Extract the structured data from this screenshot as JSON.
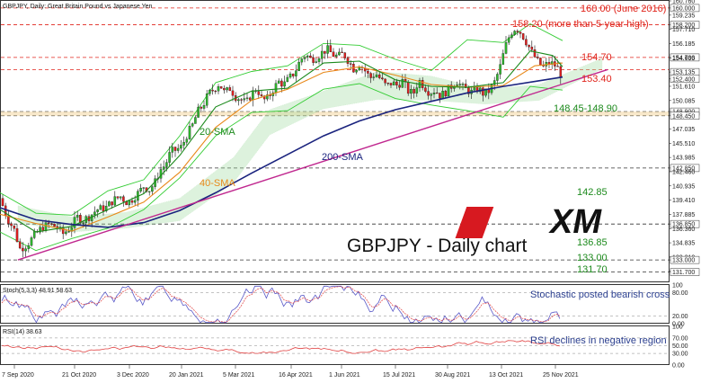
{
  "header": {
    "title": "GBPJPY, Daily:  Great Britain Pound vs Japanese Yen",
    "stoch_label": "Stoch(5,3,3) 48.91 58.63",
    "rsi_label": "RSI(14) 38.63"
  },
  "logo_text": "XM",
  "main_caption": "GBPJPY - Daily chart",
  "annotations": {
    "r160": "160.00 (June 2016)",
    "r158": "158.20 (more than 5-year high)",
    "r1547": "154.70",
    "r1534": "153.40",
    "r1484": "148.45-148.90",
    "r1428": "142.85",
    "r1368": "136.85",
    "r133": "133.00",
    "r1317": "131.70",
    "sma20": "20-SMA",
    "sma40": "40-SMA",
    "sma200": "200-SMA",
    "stoch_note": "Stochastic posted bearish cross",
    "rsi_note": "RSI declines in negative region"
  },
  "colors": {
    "red": "#e0241b",
    "green": "#1c8a1c",
    "navy": "#1a237e",
    "orange": "#e8891a",
    "magenta": "#c0288f",
    "lime": "#33cc33",
    "blue": "#3050d8",
    "stoch_main": "#5a5ac8",
    "stoch_signal": "#e04040",
    "rsi": "#e04040"
  },
  "chart_data": {
    "type": "candlestick",
    "symbol": "GBPJPY",
    "timeframe": "Daily",
    "price_ylim": [
      130.7,
      160.76
    ],
    "price_tick_labels": [
      "160.760",
      "160.000",
      "159.235",
      "158.200",
      "157.710",
      "156.185",
      "154.700",
      "154.655",
      "153.135",
      "152.400",
      "151.610",
      "150.085",
      "148.900",
      "148.450",
      "147.035",
      "145.510",
      "143.985",
      "142.850",
      "142.460",
      "140.935",
      "139.410",
      "137.885",
      "136.850",
      "136.360",
      "134.835",
      "133.310",
      "133.000",
      "131.785",
      "131.700"
    ],
    "x_dates": [
      "7 Sep 2020",
      "21 Oct 2020",
      "3 Dec 2020",
      "20 Jan 2021",
      "5 Mar 2021",
      "16 Apr 2021",
      "1 Jun 2021",
      "15 Jul 2021",
      "30 Aug 2021",
      "13 Oct 2021",
      "25 Nov 2021"
    ],
    "close_path": [
      [
        0,
        139.6
      ],
      [
        8,
        137.5
      ],
      [
        16,
        136.2
      ],
      [
        22,
        134.2
      ],
      [
        30,
        134.6
      ],
      [
        38,
        135.6
      ],
      [
        46,
        136.4
      ],
      [
        54,
        136.8
      ],
      [
        62,
        136.6
      ],
      [
        70,
        135.8
      ],
      [
        78,
        136.4
      ],
      [
        86,
        137.6
      ],
      [
        92,
        137.2
      ],
      [
        100,
        137.7
      ],
      [
        108,
        138.4
      ],
      [
        118,
        138.6
      ],
      [
        126,
        139.4
      ],
      [
        134,
        139.8
      ],
      [
        142,
        139.1
      ],
      [
        148,
        139.6
      ],
      [
        154,
        140.2
      ],
      [
        160,
        140.9
      ],
      [
        166,
        140.5
      ],
      [
        172,
        141.2
      ],
      [
        178,
        142.6
      ],
      [
        184,
        143.2
      ],
      [
        190,
        144.6
      ],
      [
        196,
        144.8
      ],
      [
        202,
        145.1
      ],
      [
        208,
        146.4
      ],
      [
        214,
        147.4
      ],
      [
        220,
        148.9
      ],
      [
        226,
        149.6
      ],
      [
        232,
        150.8
      ],
      [
        238,
        151.3
      ],
      [
        244,
        151.9
      ],
      [
        250,
        150.9
      ],
      [
        256,
        151.4
      ],
      [
        262,
        150.5
      ],
      [
        268,
        150.2
      ],
      [
        274,
        149.8
      ],
      [
        280,
        150.8
      ],
      [
        286,
        151.4
      ],
      [
        292,
        150.1
      ],
      [
        298,
        150.3
      ],
      [
        304,
        151.3
      ],
      [
        310,
        152.1
      ],
      [
        316,
        151.8
      ],
      [
        322,
        152.5
      ],
      [
        328,
        153.1
      ],
      [
        334,
        154.4
      ],
      [
        340,
        155.0
      ],
      [
        346,
        154.5
      ],
      [
        352,
        154.7
      ],
      [
        358,
        155.2
      ],
      [
        364,
        155.6
      ],
      [
        370,
        155.0
      ],
      [
        376,
        154.8
      ],
      [
        382,
        155.1
      ],
      [
        388,
        154.3
      ],
      [
        394,
        153.4
      ],
      [
        400,
        154.0
      ],
      [
        406,
        153.3
      ],
      [
        412,
        152.5
      ],
      [
        418,
        153.0
      ],
      [
        424,
        152.3
      ],
      [
        430,
        151.6
      ],
      [
        436,
        152.0
      ],
      [
        442,
        151.7
      ],
      [
        448,
        152.2
      ],
      [
        454,
        151.1
      ],
      [
        460,
        150.8
      ],
      [
        466,
        152.3
      ],
      [
        472,
        151.6
      ],
      [
        478,
        150.9
      ],
      [
        484,
        151.2
      ],
      [
        490,
        150.6
      ],
      [
        496,
        151.0
      ],
      [
        502,
        151.6
      ],
      [
        508,
        152.2
      ],
      [
        514,
        151.5
      ],
      [
        520,
        151.2
      ],
      [
        526,
        150.9
      ],
      [
        532,
        151.4
      ],
      [
        538,
        150.8
      ],
      [
        544,
        151.1
      ],
      [
        550,
        152.0
      ],
      [
        556,
        153.5
      ],
      [
        562,
        155.8
      ],
      [
        568,
        157.3
      ],
      [
        574,
        157.9
      ],
      [
        580,
        157.3
      ],
      [
        586,
        156.3
      ],
      [
        592,
        155.2
      ],
      [
        598,
        154.3
      ],
      [
        604,
        153.6
      ],
      [
        610,
        154.1
      ],
      [
        616,
        154.0
      ],
      [
        622,
        153.4
      ],
      [
        626,
        152.3
      ]
    ],
    "sma20_path": [
      [
        0,
        138.4
      ],
      [
        40,
        136.0
      ],
      [
        80,
        136.6
      ],
      [
        120,
        138.4
      ],
      [
        160,
        140.1
      ],
      [
        200,
        144.2
      ],
      [
        240,
        149.4
      ],
      [
        280,
        151.1
      ],
      [
        320,
        151.4
      ],
      [
        360,
        154.1
      ],
      [
        400,
        154.3
      ],
      [
        440,
        152.3
      ],
      [
        480,
        151.6
      ],
      [
        520,
        151.5
      ],
      [
        560,
        152.0
      ],
      [
        590,
        155.4
      ],
      [
        615,
        154.9
      ],
      [
        626,
        153.7
      ]
    ],
    "sma40_path": [
      [
        0,
        137.9
      ],
      [
        40,
        136.9
      ],
      [
        80,
        136.1
      ],
      [
        120,
        137.6
      ],
      [
        160,
        139.2
      ],
      [
        200,
        142.4
      ],
      [
        240,
        147.2
      ],
      [
        280,
        150.1
      ],
      [
        320,
        151.3
      ],
      [
        360,
        153.1
      ],
      [
        400,
        153.7
      ],
      [
        440,
        152.8
      ],
      [
        480,
        151.8
      ],
      [
        520,
        151.5
      ],
      [
        560,
        151.7
      ],
      [
        595,
        153.8
      ],
      [
        626,
        154.1
      ]
    ],
    "sma200_path": [
      [
        0,
        138.6
      ],
      [
        40,
        137.3
      ],
      [
        80,
        136.8
      ],
      [
        120,
        136.5
      ],
      [
        160,
        137.0
      ],
      [
        200,
        138.3
      ],
      [
        240,
        140.2
      ],
      [
        280,
        142.3
      ],
      [
        320,
        144.3
      ],
      [
        360,
        146.3
      ],
      [
        400,
        147.9
      ],
      [
        440,
        149.1
      ],
      [
        480,
        150.0
      ],
      [
        520,
        150.9
      ],
      [
        560,
        151.6
      ],
      [
        600,
        152.2
      ],
      [
        626,
        152.6
      ]
    ],
    "trendline": [
      [
        20,
        133.0
      ],
      [
        676,
        153.4
      ]
    ],
    "bollinger_upper": [
      [
        0,
        140.2
      ],
      [
        40,
        138.0
      ],
      [
        80,
        137.8
      ],
      [
        120,
        140.4
      ],
      [
        160,
        141.6
      ],
      [
        200,
        146.3
      ],
      [
        240,
        152.0
      ],
      [
        280,
        153.2
      ],
      [
        320,
        153.8
      ],
      [
        360,
        156.2
      ],
      [
        400,
        156.0
      ],
      [
        440,
        154.5
      ],
      [
        480,
        153.3
      ],
      [
        520,
        156.6
      ],
      [
        560,
        156.3
      ],
      [
        590,
        158.3
      ],
      [
        626,
        156.5
      ]
    ],
    "bollinger_lower": [
      [
        0,
        136.0
      ],
      [
        40,
        134.0
      ],
      [
        80,
        135.3
      ],
      [
        120,
        136.4
      ],
      [
        160,
        138.4
      ],
      [
        200,
        141.8
      ],
      [
        240,
        146.3
      ],
      [
        280,
        148.8
      ],
      [
        320,
        149.0
      ],
      [
        360,
        151.3
      ],
      [
        400,
        151.9
      ],
      [
        440,
        150.3
      ],
      [
        480,
        149.6
      ],
      [
        520,
        149.0
      ],
      [
        560,
        148.3
      ],
      [
        590,
        151.6
      ],
      [
        626,
        151.2
      ]
    ],
    "ichimoku_cloud_top": [
      [
        20,
        138.8
      ],
      [
        80,
        137.6
      ],
      [
        140,
        138.1
      ],
      [
        200,
        139.6
      ],
      [
        260,
        144.0
      ],
      [
        300,
        149.1
      ],
      [
        360,
        151.1
      ],
      [
        420,
        153.2
      ],
      [
        480,
        152.7
      ],
      [
        540,
        151.3
      ],
      [
        600,
        151.8
      ],
      [
        670,
        154.6
      ]
    ],
    "ichimoku_cloud_bottom": [
      [
        20,
        137.0
      ],
      [
        80,
        136.0
      ],
      [
        140,
        136.4
      ],
      [
        200,
        137.2
      ],
      [
        260,
        141.3
      ],
      [
        300,
        146.4
      ],
      [
        360,
        149.2
      ],
      [
        420,
        150.2
      ],
      [
        480,
        150.1
      ],
      [
        540,
        149.7
      ],
      [
        600,
        150.1
      ],
      [
        670,
        153.5
      ]
    ],
    "horizontal_levels": [
      160.0,
      158.2,
      154.7,
      153.4,
      148.9,
      148.45,
      142.85,
      136.85,
      133.0,
      131.7
    ],
    "stochastic": {
      "main": 48.91,
      "signal": 58.63,
      "ylim": [
        0,
        100
      ],
      "tick_labels": [
        "100",
        "80.00",
        "20.00",
        "0.00"
      ]
    },
    "rsi": {
      "value": 38.63,
      "ylim": [
        0,
        100
      ],
      "tick_labels": [
        "100",
        "70.00",
        "50.00",
        "30.00",
        "0.00"
      ]
    }
  }
}
